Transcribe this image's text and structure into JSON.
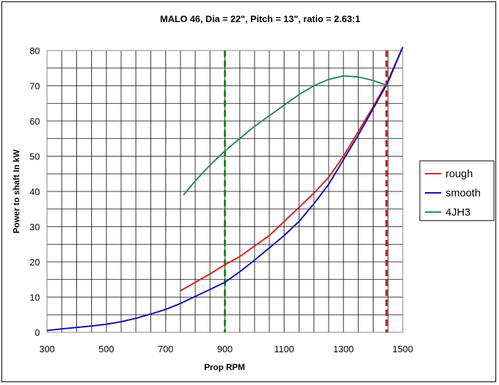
{
  "chart_data": {
    "type": "line",
    "title": "MALO 46, Dia = 22\", Pitch = 13\", ratio = 2.63:1",
    "xlabel": "Prop RPM",
    "ylabel": "Power to shaft    In kW",
    "xlim": [
      300,
      1500
    ],
    "ylim": [
      0,
      80
    ],
    "x_ticks": [
      "300",
      "500",
      "700",
      "900",
      "1100",
      "1300",
      "1500"
    ],
    "y_ticks": [
      "0",
      "10",
      "20",
      "30",
      "40",
      "50",
      "60",
      "70",
      "80"
    ],
    "grid": true,
    "legend_position": "right",
    "series": [
      {
        "name": "rough",
        "color": "#d42020",
        "x": [
          750,
          800,
          850,
          900,
          950,
          1000,
          1050,
          1100,
          1150,
          1200,
          1250,
          1300,
          1350,
          1400,
          1450,
          1500
        ],
        "y": [
          11.8,
          14.2,
          16.6,
          19.2,
          21.5,
          24.5,
          27.5,
          31.5,
          35.5,
          39.5,
          44,
          50,
          57,
          64,
          71.5,
          81
        ]
      },
      {
        "name": "smooth",
        "color": "#1010b0",
        "x": [
          300,
          350,
          400,
          450,
          500,
          550,
          600,
          650,
          700,
          750,
          800,
          850,
          900,
          950,
          1000,
          1050,
          1100,
          1150,
          1200,
          1250,
          1300,
          1350,
          1400,
          1450,
          1500
        ],
        "y": [
          0.5,
          1.0,
          1.4,
          1.8,
          2.3,
          3.0,
          4.0,
          5.2,
          6.5,
          8.2,
          10.2,
          12.2,
          14.2,
          17.2,
          20.5,
          24,
          27.5,
          31.5,
          36.5,
          42,
          49,
          56,
          63.5,
          71,
          81
        ]
      },
      {
        "name": "4JH3",
        "color": "#2e8b57",
        "x": [
          760,
          800,
          850,
          900,
          950,
          1000,
          1050,
          1100,
          1150,
          1200,
          1250,
          1300,
          1350,
          1400,
          1450
        ],
        "y": [
          39,
          43,
          47.5,
          51.5,
          55,
          58.5,
          61.5,
          64.5,
          67.5,
          70,
          71.8,
          72.8,
          72.5,
          71.5,
          70
        ]
      }
    ],
    "reference_lines": [
      {
        "x": 900,
        "color": "#1a8a1a",
        "style": "dashed"
      },
      {
        "x": 1445,
        "color": "#b22222",
        "style": "dashed"
      }
    ]
  }
}
